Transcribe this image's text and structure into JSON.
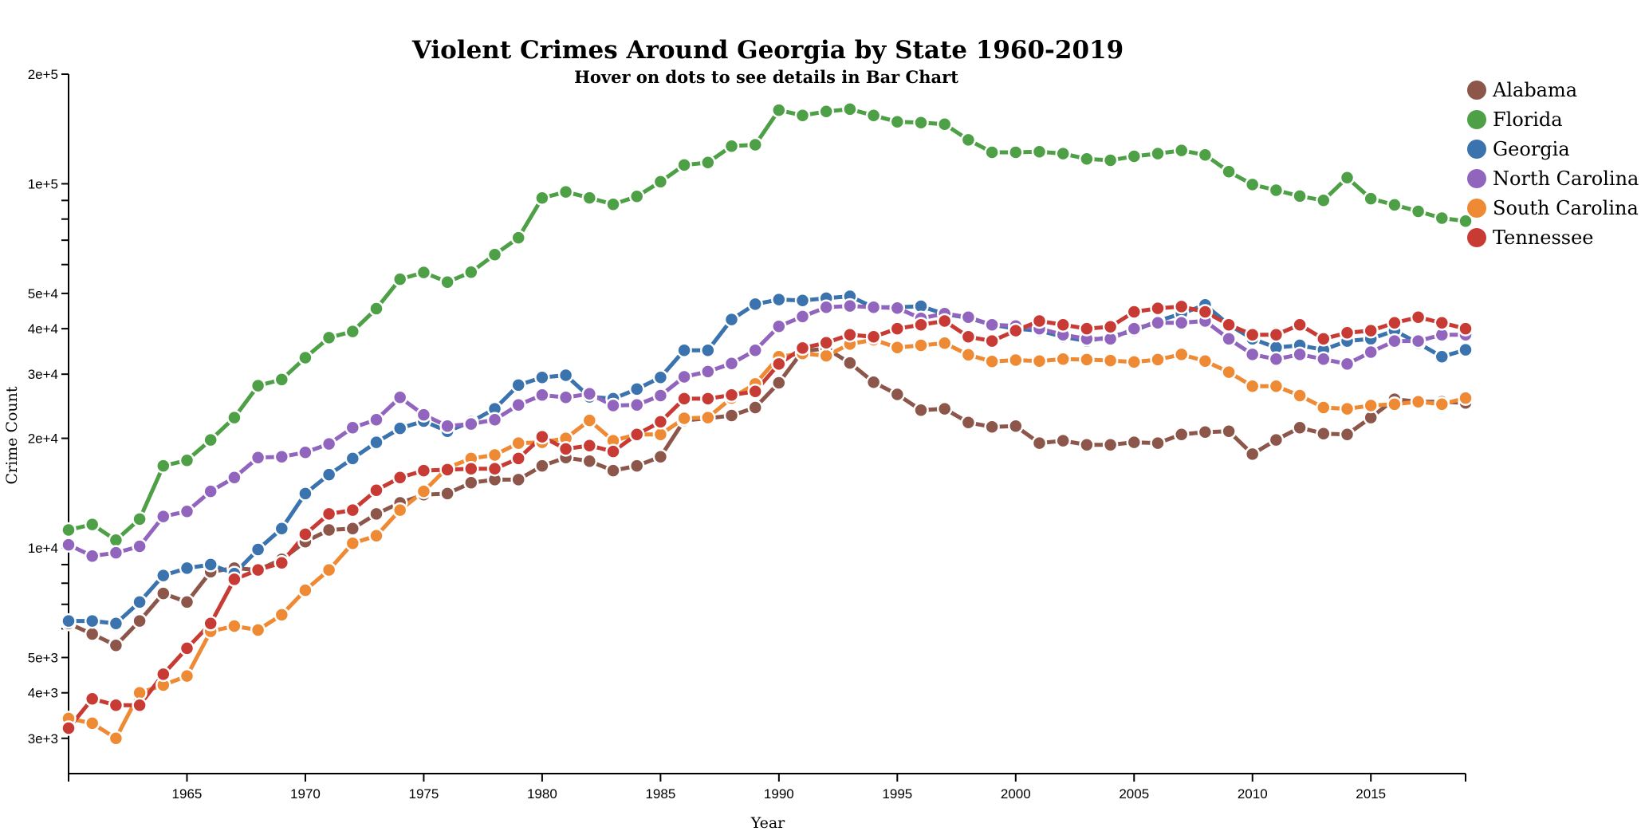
{
  "chart_data": {
    "type": "line",
    "title": "Violent Crimes Around Georgia by State 1960-2019",
    "subtitle": "Hover on dots to see details in Bar Chart",
    "xlabel": "Year",
    "ylabel": "Crime Count",
    "y_scale": "log",
    "xlim": [
      1960,
      2019
    ],
    "ylim": [
      2400,
      200000
    ],
    "x_ticks": [
      1965,
      1970,
      1975,
      1980,
      1985,
      1990,
      1995,
      2000,
      2005,
      2010,
      2015
    ],
    "y_ticks_labeled": [
      {
        "value": 3000,
        "label": "3e+3"
      },
      {
        "value": 4000,
        "label": "4e+3"
      },
      {
        "value": 5000,
        "label": "5e+3"
      },
      {
        "value": 10000,
        "label": "1e+4"
      },
      {
        "value": 20000,
        "label": "2e+4"
      },
      {
        "value": 30000,
        "label": "3e+4"
      },
      {
        "value": 40000,
        "label": "4e+4"
      },
      {
        "value": 50000,
        "label": "5e+4"
      },
      {
        "value": 100000,
        "label": "1e+5"
      },
      {
        "value": 200000,
        "label": "2e+5"
      }
    ],
    "y_ticks_minor": [
      6000,
      7000,
      8000,
      9000,
      60000,
      70000,
      80000,
      90000
    ],
    "legend_position": "top-right",
    "grid": false,
    "x": [
      1960,
      1961,
      1962,
      1963,
      1964,
      1965,
      1966,
      1967,
      1968,
      1969,
      1970,
      1971,
      1972,
      1973,
      1974,
      1975,
      1976,
      1977,
      1978,
      1979,
      1980,
      1981,
      1982,
      1983,
      1984,
      1985,
      1986,
      1987,
      1988,
      1989,
      1990,
      1991,
      1992,
      1993,
      1994,
      1995,
      1996,
      1997,
      1998,
      1999,
      2000,
      2001,
      2002,
      2003,
      2004,
      2005,
      2006,
      2007,
      2008,
      2009,
      2010,
      2011,
      2012,
      2013,
      2014,
      2015,
      2016,
      2017,
      2018,
      2019
    ],
    "series": [
      {
        "name": "Alabama",
        "color": "#8c564b",
        "values": [
          6200,
          5800,
          5400,
          6300,
          7500,
          7100,
          8600,
          8800,
          8700,
          9300,
          10400,
          11200,
          11300,
          12400,
          13300,
          14000,
          14100,
          15100,
          15400,
          15400,
          16800,
          17700,
          17300,
          16300,
          16800,
          17800,
          22400,
          22700,
          23100,
          24300,
          28400,
          34700,
          35300,
          32200,
          28500,
          26400,
          23900,
          24100,
          22100,
          21500,
          21600,
          19400,
          19700,
          19200,
          19200,
          19500,
          19400,
          20500,
          20800,
          20900,
          18100,
          19800,
          21400,
          20600,
          20500,
          22800,
          25600,
          25200,
          25200,
          25000
        ]
      },
      {
        "name": "Florida",
        "color": "#4da046",
        "values": [
          11200,
          11600,
          10500,
          12000,
          16800,
          17400,
          19800,
          22800,
          27900,
          29000,
          33300,
          37800,
          39300,
          45400,
          54700,
          57100,
          53700,
          57200,
          63900,
          71100,
          91400,
          95000,
          91500,
          87800,
          92300,
          101300,
          112600,
          114400,
          126900,
          128000,
          159300,
          154000,
          158000,
          160300,
          154000,
          148000,
          147200,
          145800,
          132000,
          122000,
          122000,
          122500,
          121000,
          117000,
          116000,
          119000,
          121000,
          123500,
          120000,
          108000,
          99500,
          96000,
          92500,
          90000,
          104000,
          91000,
          87500,
          84000,
          80500,
          79000
        ]
      },
      {
        "name": "Georgia",
        "color": "#3a73ad",
        "values": [
          6300,
          6300,
          6200,
          7100,
          8400,
          8800,
          9000,
          8500,
          9900,
          11300,
          14100,
          15900,
          17600,
          19500,
          21300,
          22300,
          20900,
          22200,
          24100,
          28000,
          29400,
          29800,
          26000,
          25700,
          27300,
          29400,
          34900,
          34900,
          42400,
          46700,
          48100,
          47800,
          48500,
          49100,
          45800,
          45800,
          46100,
          43900,
          42800,
          41000,
          40000,
          39500,
          38000,
          37000,
          38000,
          39500,
          42000,
          44000,
          46500,
          41000,
          37500,
          35500,
          36000,
          35000,
          37000,
          37500,
          39500,
          36500,
          33500,
          35000
        ]
      },
      {
        "name": "North Carolina",
        "color": "#9165be",
        "values": [
          10200,
          9500,
          9700,
          10100,
          12200,
          12600,
          14300,
          15600,
          17700,
          17800,
          18300,
          19300,
          21400,
          22500,
          25900,
          23200,
          21600,
          21900,
          22500,
          24700,
          26300,
          25900,
          26500,
          24600,
          24700,
          26200,
          29500,
          30500,
          32100,
          34900,
          40600,
          43200,
          45800,
          46200,
          45800,
          45600,
          42700,
          44000,
          43000,
          41000,
          40700,
          40000,
          38500,
          37500,
          37500,
          40000,
          41500,
          41500,
          42000,
          37500,
          34000,
          33000,
          34000,
          33000,
          32000,
          34500,
          37000,
          37000,
          38500,
          38500
        ]
      },
      {
        "name": "South Carolina",
        "color": "#ef8a34",
        "values": [
          3400,
          3300,
          3000,
          4000,
          4200,
          4450,
          5900,
          6100,
          5950,
          6550,
          7650,
          8700,
          10300,
          10800,
          12700,
          14300,
          16600,
          17600,
          18000,
          19400,
          19500,
          20000,
          22400,
          19700,
          20500,
          20500,
          22700,
          22800,
          25800,
          28200,
          33500,
          34200,
          33700,
          36300,
          37300,
          35500,
          36000,
          36500,
          33900,
          32500,
          32800,
          32600,
          33000,
          32900,
          32700,
          32400,
          32900,
          34000,
          32600,
          30400,
          27800,
          27800,
          26200,
          24300,
          24100,
          24600,
          24800,
          25200,
          24800,
          25800
        ]
      },
      {
        "name": "Tennessee",
        "color": "#c83b35",
        "values": [
          3200,
          3850,
          3700,
          3700,
          4500,
          5300,
          6200,
          8200,
          8700,
          9100,
          10900,
          12400,
          12700,
          14400,
          15600,
          16300,
          16400,
          16500,
          16500,
          17600,
          20200,
          18700,
          19100,
          18400,
          20500,
          22200,
          25700,
          25700,
          26300,
          26900,
          32000,
          35400,
          36600,
          38500,
          38000,
          40000,
          41000,
          42000,
          38000,
          37000,
          39500,
          42000,
          41000,
          40000,
          40500,
          44500,
          45500,
          46000,
          44500,
          41000,
          38500,
          38500,
          41000,
          37500,
          39000,
          39500,
          41500,
          43000,
          41500,
          40000
        ]
      }
    ]
  }
}
